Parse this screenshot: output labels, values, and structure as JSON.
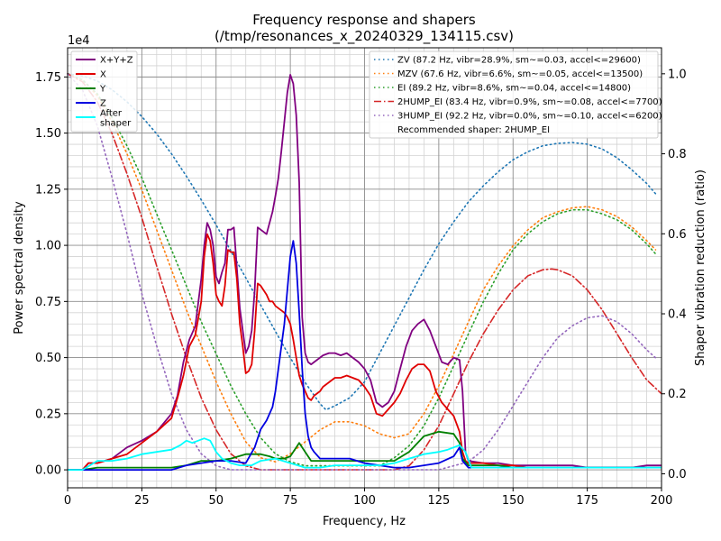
{
  "chart_data": {
    "type": "line",
    "title": "Frequency response and shapers",
    "subtitle": "(/tmp/resonances_x_20240329_134115.csv)",
    "xlabel": "Frequency, Hz",
    "ylabel": "Power spectral density",
    "y2label": "Shaper vibration reduction (ratio)",
    "exponent_label": "1e4",
    "xlim": [
      0,
      200
    ],
    "ylim": [
      -0.08,
      1.88
    ],
    "y2lim": [
      -0.035,
      1.065
    ],
    "xticks": [
      0,
      25,
      50,
      75,
      100,
      125,
      150,
      175,
      200
    ],
    "xtick_labels": [
      "0",
      "25",
      "50",
      "75",
      "100",
      "125",
      "150",
      "175",
      "200"
    ],
    "yticks": [
      0,
      0.25,
      0.5,
      0.75,
      1.0,
      1.25,
      1.5,
      1.75
    ],
    "ytick_labels": [
      "0.00",
      "0.25",
      "0.50",
      "0.75",
      "1.00",
      "1.25",
      "1.50",
      "1.75"
    ],
    "y2ticks": [
      0,
      0.2,
      0.4,
      0.6,
      0.8,
      1.0
    ],
    "y2tick_labels": [
      "0.0",
      "0.2",
      "0.4",
      "0.6",
      "0.8",
      "1.0"
    ],
    "grid": true,
    "legend_left_placement": "upper-left",
    "legend_right_placement": "upper-right",
    "recommended_text": "Recommended shaper: 2HUMP_EI",
    "psd_series": [
      {
        "name": "X+Y+Z",
        "color": "#800080",
        "x": [
          0,
          5,
          7,
          10,
          15,
          20,
          25,
          30,
          35,
          37,
          39,
          41,
          43,
          45,
          46,
          47,
          48,
          49,
          50,
          51,
          52,
          53,
          54,
          55,
          56,
          57,
          58,
          59,
          60,
          61,
          62,
          63,
          64,
          65,
          66,
          67,
          68,
          69,
          70,
          71,
          72,
          73,
          74,
          75,
          76,
          77,
          78,
          79,
          80,
          81,
          82,
          83,
          84,
          85,
          86,
          88,
          90,
          92,
          94,
          96,
          98,
          100,
          102,
          104,
          106,
          108,
          110,
          112,
          114,
          116,
          118,
          120,
          122,
          124,
          126,
          128,
          130,
          132,
          133,
          134,
          135,
          140,
          145,
          150,
          155,
          160,
          165,
          170,
          175,
          180,
          185,
          190,
          195,
          200
        ],
        "y": [
          0,
          0,
          0.03,
          0.03,
          0.05,
          0.1,
          0.13,
          0.17,
          0.25,
          0.33,
          0.48,
          0.58,
          0.64,
          0.85,
          1.0,
          1.1,
          1.07,
          1.0,
          0.86,
          0.83,
          0.88,
          0.92,
          1.07,
          1.07,
          1.08,
          0.9,
          0.72,
          0.62,
          0.52,
          0.55,
          0.62,
          0.8,
          1.08,
          1.07,
          1.06,
          1.05,
          1.1,
          1.15,
          1.22,
          1.3,
          1.42,
          1.55,
          1.68,
          1.76,
          1.72,
          1.58,
          1.28,
          0.68,
          0.52,
          0.48,
          0.47,
          0.48,
          0.49,
          0.5,
          0.51,
          0.52,
          0.52,
          0.51,
          0.52,
          0.5,
          0.48,
          0.45,
          0.4,
          0.3,
          0.28,
          0.3,
          0.35,
          0.45,
          0.55,
          0.62,
          0.65,
          0.67,
          0.62,
          0.55,
          0.48,
          0.47,
          0.5,
          0.49,
          0.35,
          0.08,
          0.04,
          0.03,
          0.03,
          0.02,
          0.02,
          0.02,
          0.02,
          0.02,
          0.01,
          0.01,
          0.01,
          0.01,
          0.02,
          0.02
        ]
      },
      {
        "name": "X",
        "color": "#e00000",
        "x": [
          0,
          5,
          7,
          10,
          15,
          20,
          25,
          30,
          35,
          37,
          39,
          41,
          43,
          45,
          46,
          47,
          48,
          49,
          50,
          51,
          52,
          53,
          54,
          55,
          56,
          57,
          58,
          59,
          60,
          61,
          62,
          63,
          64,
          65,
          66,
          67,
          68,
          69,
          70,
          71,
          72,
          73,
          74,
          75,
          76,
          77,
          78,
          79,
          80,
          81,
          82,
          83,
          84,
          85,
          86,
          88,
          90,
          92,
          94,
          96,
          98,
          100,
          102,
          104,
          106,
          108,
          110,
          112,
          114,
          116,
          118,
          120,
          122,
          124,
          126,
          128,
          130,
          132,
          133,
          134,
          135,
          140,
          145,
          150,
          155,
          160,
          165,
          170,
          175,
          180,
          185,
          190,
          195,
          200
        ],
        "y": [
          0,
          0,
          0.03,
          0.03,
          0.05,
          0.07,
          0.12,
          0.17,
          0.23,
          0.32,
          0.42,
          0.55,
          0.6,
          0.75,
          0.95,
          1.05,
          1.02,
          0.92,
          0.78,
          0.75,
          0.73,
          0.82,
          0.98,
          0.97,
          0.97,
          0.85,
          0.65,
          0.55,
          0.43,
          0.44,
          0.47,
          0.62,
          0.83,
          0.82,
          0.8,
          0.78,
          0.75,
          0.75,
          0.73,
          0.72,
          0.71,
          0.7,
          0.68,
          0.65,
          0.58,
          0.5,
          0.42,
          0.38,
          0.35,
          0.32,
          0.31,
          0.33,
          0.34,
          0.35,
          0.37,
          0.39,
          0.41,
          0.41,
          0.42,
          0.41,
          0.4,
          0.37,
          0.33,
          0.25,
          0.24,
          0.27,
          0.3,
          0.34,
          0.4,
          0.45,
          0.47,
          0.47,
          0.44,
          0.35,
          0.3,
          0.27,
          0.24,
          0.17,
          0.08,
          0.04,
          0.03,
          0.03,
          0.02,
          0.02,
          0.01,
          0.01,
          0.01,
          0.01,
          0.01,
          0.01,
          0.01,
          0.01,
          0.01,
          0.01
        ]
      },
      {
        "name": "Y",
        "color": "#008000",
        "x": [
          0,
          5,
          10,
          20,
          30,
          35,
          40,
          45,
          50,
          55,
          60,
          65,
          68,
          70,
          73,
          75,
          77,
          78,
          80,
          82,
          85,
          90,
          95,
          100,
          105,
          110,
          115,
          120,
          125,
          130,
          132,
          133,
          135,
          140,
          145,
          150,
          155,
          160,
          170,
          180,
          190,
          200
        ],
        "y": [
          0,
          0,
          0.01,
          0.01,
          0.01,
          0.01,
          0.02,
          0.04,
          0.04,
          0.05,
          0.07,
          0.07,
          0.06,
          0.05,
          0.05,
          0.06,
          0.1,
          0.12,
          0.08,
          0.04,
          0.04,
          0.04,
          0.04,
          0.04,
          0.04,
          0.04,
          0.08,
          0.15,
          0.17,
          0.16,
          0.12,
          0.05,
          0.02,
          0.02,
          0.02,
          0.01,
          0.01,
          0.01,
          0.01,
          0.01,
          0.01,
          0.01
        ]
      },
      {
        "name": "Z",
        "color": "#0000e0",
        "x": [
          0,
          5,
          10,
          20,
          30,
          35,
          40,
          45,
          50,
          55,
          60,
          63,
          65,
          67,
          69,
          70,
          71,
          72,
          73,
          74,
          75,
          76,
          77,
          78,
          79,
          80,
          81,
          82,
          83,
          85,
          90,
          95,
          100,
          105,
          110,
          115,
          120,
          125,
          130,
          132,
          133,
          135,
          140,
          150,
          160,
          170,
          180,
          190,
          200
        ],
        "y": [
          0,
          0,
          0,
          0,
          0,
          0,
          0.02,
          0.03,
          0.04,
          0.04,
          0.03,
          0.1,
          0.18,
          0.22,
          0.28,
          0.35,
          0.45,
          0.55,
          0.65,
          0.8,
          0.95,
          1.02,
          0.92,
          0.7,
          0.45,
          0.25,
          0.15,
          0.1,
          0.08,
          0.05,
          0.05,
          0.05,
          0.03,
          0.02,
          0.01,
          0.01,
          0.02,
          0.03,
          0.06,
          0.1,
          0.04,
          0.01,
          0.01,
          0.01,
          0.01,
          0.01,
          0.01,
          0.01,
          0.01
        ]
      },
      {
        "name": "After\nshaper",
        "color": "#00ffff",
        "x": [
          0,
          5,
          10,
          15,
          20,
          25,
          30,
          35,
          38,
          40,
          42,
          44,
          46,
          48,
          50,
          52,
          55,
          58,
          60,
          62,
          65,
          70,
          75,
          80,
          85,
          90,
          95,
          100,
          105,
          110,
          115,
          120,
          125,
          128,
          130,
          132,
          134,
          136,
          140,
          150,
          160,
          170,
          180,
          190,
          200
        ],
        "y": [
          0,
          0,
          0.04,
          0.04,
          0.05,
          0.07,
          0.08,
          0.09,
          0.11,
          0.13,
          0.12,
          0.13,
          0.14,
          0.13,
          0.08,
          0.05,
          0.03,
          0.02,
          0.02,
          0.02,
          0.04,
          0.05,
          0.03,
          0.01,
          0.01,
          0.02,
          0.02,
          0.02,
          0.02,
          0.03,
          0.05,
          0.07,
          0.08,
          0.09,
          0.1,
          0.11,
          0.08,
          0.01,
          0.01,
          0.01,
          0.01,
          0.01,
          0.01,
          0.01,
          0.01
        ]
      }
    ],
    "shaper_series": [
      {
        "name": "ZV (87.2 Hz, vibr=28.9%, sm~=0.03, accel<=29600)",
        "color": "#1f77b4",
        "style": "dotted",
        "x": [
          0,
          5,
          10,
          15,
          20,
          25,
          30,
          35,
          40,
          45,
          50,
          55,
          60,
          65,
          70,
          75,
          80,
          85,
          87,
          90,
          95,
          100,
          105,
          110,
          115,
          120,
          125,
          130,
          135,
          140,
          145,
          150,
          155,
          160,
          165,
          170,
          175,
          180,
          185,
          190,
          195,
          198
        ],
        "y": [
          1.0,
          0.995,
          0.982,
          0.96,
          0.93,
          0.893,
          0.85,
          0.8,
          0.744,
          0.685,
          0.622,
          0.557,
          0.49,
          0.422,
          0.356,
          0.29,
          0.228,
          0.175,
          0.16,
          0.17,
          0.19,
          0.23,
          0.3,
          0.37,
          0.44,
          0.51,
          0.575,
          0.63,
          0.68,
          0.72,
          0.755,
          0.785,
          0.805,
          0.82,
          0.826,
          0.828,
          0.824,
          0.812,
          0.79,
          0.76,
          0.726,
          0.7
        ]
      },
      {
        "name": "MZV (67.6 Hz, vibr=6.6%, sm~=0.05, accel<=13500)",
        "color": "#ff7f0e",
        "style": "dotted",
        "x": [
          0,
          5,
          10,
          15,
          20,
          25,
          30,
          35,
          40,
          45,
          50,
          55,
          60,
          65,
          70,
          75,
          80,
          85,
          90,
          95,
          100,
          105,
          110,
          115,
          120,
          125,
          130,
          135,
          140,
          145,
          150,
          155,
          160,
          165,
          170,
          175,
          180,
          185,
          190,
          195,
          198
        ],
        "y": [
          1.0,
          0.985,
          0.945,
          0.88,
          0.8,
          0.71,
          0.61,
          0.51,
          0.41,
          0.32,
          0.23,
          0.15,
          0.08,
          0.04,
          0.03,
          0.05,
          0.08,
          0.11,
          0.13,
          0.13,
          0.12,
          0.1,
          0.09,
          0.1,
          0.15,
          0.22,
          0.3,
          0.38,
          0.46,
          0.52,
          0.57,
          0.61,
          0.64,
          0.655,
          0.665,
          0.668,
          0.66,
          0.643,
          0.617,
          0.583,
          0.56
        ]
      },
      {
        "name": "EI (89.2 Hz, vibr=8.6%, sm~=0.04, accel<=14800)",
        "color": "#2ca02c",
        "style": "dotted",
        "x": [
          0,
          5,
          10,
          15,
          20,
          25,
          30,
          35,
          40,
          45,
          50,
          55,
          60,
          65,
          70,
          75,
          80,
          85,
          90,
          95,
          100,
          105,
          110,
          115,
          120,
          125,
          130,
          135,
          140,
          145,
          150,
          155,
          160,
          165,
          170,
          175,
          180,
          185,
          190,
          195,
          198
        ],
        "y": [
          1.0,
          0.985,
          0.95,
          0.89,
          0.82,
          0.74,
          0.65,
          0.56,
          0.47,
          0.38,
          0.3,
          0.22,
          0.15,
          0.09,
          0.05,
          0.03,
          0.02,
          0.02,
          0.02,
          0.02,
          0.02,
          0.02,
          0.04,
          0.07,
          0.12,
          0.19,
          0.27,
          0.35,
          0.43,
          0.5,
          0.56,
          0.6,
          0.63,
          0.65,
          0.66,
          0.66,
          0.65,
          0.635,
          0.61,
          0.575,
          0.55
        ]
      },
      {
        "name": "2HUMP_EI (83.4 Hz, vibr=0.9%, sm~=0.08, accel<=7700)",
        "color": "#d62728",
        "style": "dashdot",
        "x": [
          0,
          5,
          10,
          15,
          20,
          25,
          30,
          35,
          40,
          45,
          50,
          55,
          60,
          65,
          70,
          75,
          80,
          85,
          90,
          95,
          100,
          105,
          110,
          115,
          120,
          125,
          130,
          135,
          140,
          145,
          150,
          155,
          160,
          163,
          165,
          170,
          175,
          180,
          185,
          190,
          195,
          200
        ],
        "y": [
          1.0,
          0.98,
          0.93,
          0.85,
          0.75,
          0.64,
          0.52,
          0.4,
          0.29,
          0.19,
          0.11,
          0.05,
          0.02,
          0.01,
          0.01,
          0.01,
          0.01,
          0.01,
          0.01,
          0.01,
          0.01,
          0.01,
          0.01,
          0.02,
          0.06,
          0.12,
          0.2,
          0.28,
          0.35,
          0.41,
          0.46,
          0.495,
          0.51,
          0.512,
          0.51,
          0.495,
          0.46,
          0.41,
          0.35,
          0.29,
          0.235,
          0.2
        ]
      },
      {
        "name": "3HUMP_EI (92.2 Hz, vibr=0.0%, sm~=0.10, accel<=6200)",
        "color": "#9467bd",
        "style": "dotted",
        "x": [
          0,
          5,
          10,
          15,
          20,
          25,
          30,
          35,
          40,
          45,
          50,
          55,
          60,
          65,
          70,
          75,
          80,
          85,
          90,
          95,
          100,
          105,
          110,
          115,
          120,
          125,
          130,
          135,
          140,
          145,
          150,
          155,
          160,
          165,
          170,
          175,
          180,
          185,
          190,
          195,
          198
        ],
        "y": [
          1.0,
          0.96,
          0.87,
          0.74,
          0.6,
          0.45,
          0.32,
          0.2,
          0.11,
          0.05,
          0.02,
          0.01,
          0.01,
          0.01,
          0.01,
          0.01,
          0.01,
          0.01,
          0.01,
          0.01,
          0.01,
          0.01,
          0.01,
          0.01,
          0.01,
          0.01,
          0.02,
          0.03,
          0.06,
          0.11,
          0.17,
          0.23,
          0.29,
          0.34,
          0.37,
          0.39,
          0.395,
          0.38,
          0.35,
          0.31,
          0.29
        ]
      }
    ]
  }
}
